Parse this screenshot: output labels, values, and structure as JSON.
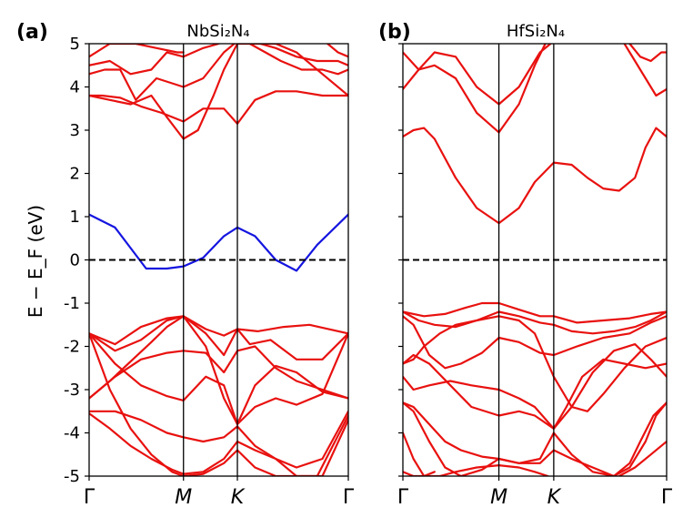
{
  "ylabel": "E − E_F (eV)",
  "colors": {
    "band": "#e8110f",
    "highlight": "#1515e0",
    "fermi": "#000000",
    "axis": "#000000"
  },
  "chart_data": [
    {
      "type": "line",
      "panel_letter": "(a)",
      "title": "NbSi₂N₄",
      "ylabel": "E − E_F (eV)",
      "ylim": [
        -5,
        5
      ],
      "yticks": [
        "-5",
        "-4",
        "-3",
        "-2",
        "-1",
        "0",
        "1",
        "2",
        "3",
        "4",
        "5"
      ],
      "xlim": [
        0,
        1
      ],
      "kpoints": [
        {
          "label": "Γ",
          "x": 0.0
        },
        {
          "label": "M",
          "x": 0.364
        },
        {
          "label": "K",
          "x": 0.572
        },
        {
          "label": "Γ",
          "x": 1.0
        }
      ],
      "fermi_level": 0,
      "series": [
        {
          "x": [
            0,
            0.1,
            0.22,
            0.3,
            0.364,
            0.44,
            0.52,
            0.572,
            0.64,
            0.72,
            0.8,
            0.88,
            1.0
          ],
          "y": [
            1.05,
            0.75,
            -0.2,
            -0.2,
            -0.15,
            0.05,
            0.55,
            0.75,
            0.55,
            0.0,
            -0.25,
            0.35,
            1.05
          ],
          "highlight": true
        },
        {
          "x": [
            0,
            0.1,
            0.2,
            0.3,
            0.364,
            0.45,
            0.52,
            0.572,
            0.65,
            0.75,
            0.85,
            1.0
          ],
          "y": [
            -1.7,
            -1.95,
            -1.55,
            -1.35,
            -1.3,
            -1.6,
            -1.75,
            -1.6,
            -1.65,
            -1.55,
            -1.5,
            -1.7
          ]
        },
        {
          "x": [
            0,
            0.1,
            0.2,
            0.3,
            0.364,
            0.45,
            0.52,
            0.572,
            0.62,
            0.7,
            0.8,
            0.9,
            1.0
          ],
          "y": [
            -1.7,
            -2.1,
            -1.85,
            -1.4,
            -1.3,
            -1.7,
            -2.2,
            -1.6,
            -1.95,
            -1.85,
            -2.3,
            -2.3,
            -1.7
          ]
        },
        {
          "x": [
            0,
            0.1,
            0.2,
            0.3,
            0.364,
            0.45,
            0.52,
            0.572,
            0.64,
            0.72,
            0.8,
            0.9,
            1.0
          ],
          "y": [
            -3.2,
            -2.7,
            -2.3,
            -2.15,
            -2.1,
            -2.15,
            -2.6,
            -2.1,
            -2.0,
            -2.5,
            -2.8,
            -3.0,
            -3.2
          ]
        },
        {
          "x": [
            0,
            0.08,
            0.16,
            0.24,
            0.3,
            0.364,
            0.45,
            0.52,
            0.572,
            0.64,
            0.72,
            0.8,
            0.9,
            1.0
          ],
          "y": [
            -3.2,
            -2.8,
            -2.35,
            -1.9,
            -1.55,
            -1.3,
            -2.0,
            -3.2,
            -3.8,
            -2.9,
            -2.45,
            -2.6,
            -3.05,
            -3.2
          ]
        },
        {
          "x": [
            0,
            0.1,
            0.2,
            0.3,
            0.364,
            0.45,
            0.52,
            0.572,
            0.64,
            0.72,
            0.8,
            0.9,
            1.0
          ],
          "y": [
            -1.7,
            -2.4,
            -2.9,
            -3.15,
            -3.25,
            -2.7,
            -2.9,
            -3.8,
            -3.4,
            -3.2,
            -3.35,
            -3.1,
            -1.7
          ]
        },
        {
          "x": [
            0,
            0.1,
            0.2,
            0.3,
            0.364,
            0.44,
            0.52,
            0.572,
            0.64,
            0.72,
            0.8,
            0.9,
            1.0
          ],
          "y": [
            -3.5,
            -3.5,
            -3.7,
            -4.0,
            -4.1,
            -4.2,
            -4.1,
            -3.85,
            -4.3,
            -4.6,
            -4.8,
            -4.6,
            -3.5
          ]
        },
        {
          "x": [
            0,
            0.08,
            0.16,
            0.24,
            0.32,
            0.364,
            0.44,
            0.52,
            0.572,
            0.64,
            0.72,
            0.8,
            0.88,
            1.0
          ],
          "y": [
            -3.55,
            -3.9,
            -4.3,
            -4.6,
            -4.85,
            -4.95,
            -4.9,
            -4.6,
            -4.2,
            -4.4,
            -4.6,
            -5.0,
            -5.0,
            -3.6
          ]
        },
        {
          "x": [
            0,
            0.08,
            0.16,
            0.24,
            0.32,
            0.364,
            0.44,
            0.52,
            0.572,
            0.64,
            0.72,
            0.8,
            0.9,
            1.0
          ],
          "y": [
            -1.7,
            -3.0,
            -3.9,
            -4.5,
            -4.9,
            -5.0,
            -4.95,
            -4.7,
            -4.4,
            -4.8,
            -5.0,
            -5.0,
            -5.0,
            -3.7
          ]
        },
        {
          "x": [
            0,
            0.05,
            0.12,
            0.2,
            0.28,
            0.364,
            0.44,
            0.52,
            0.572,
            0.64,
            0.72,
            0.8,
            0.9,
            1.0
          ],
          "y": [
            3.8,
            3.8,
            3.75,
            3.55,
            3.4,
            3.2,
            3.5,
            3.5,
            3.15,
            3.7,
            3.9,
            3.9,
            3.8,
            3.8
          ]
        },
        {
          "x": [
            0,
            0.08,
            0.16,
            0.24,
            0.3,
            0.364,
            0.42,
            0.48,
            0.52,
            0.572,
            0.64,
            0.72,
            0.8,
            0.9,
            1.0
          ],
          "y": [
            3.8,
            3.7,
            3.6,
            3.8,
            3.3,
            2.8,
            3.0,
            3.8,
            4.4,
            5.0,
            5.0,
            5.0,
            4.8,
            4.3,
            3.8
          ]
        },
        {
          "x": [
            0,
            0.06,
            0.12,
            0.18,
            0.26,
            0.364,
            0.44,
            0.52,
            0.56
          ],
          "y": [
            4.3,
            4.4,
            4.4,
            3.7,
            4.2,
            4.0,
            4.2,
            4.8,
            5.0
          ]
        },
        {
          "x": [
            0,
            0.08,
            0.16,
            0.24,
            0.3,
            0.364,
            0.44,
            0.5
          ],
          "y": [
            4.5,
            4.6,
            4.3,
            4.4,
            4.8,
            4.7,
            4.9,
            5.0
          ]
        },
        {
          "x": [
            0,
            0.08,
            0.18,
            0.26,
            0.34,
            0.364
          ],
          "y": [
            4.7,
            5.0,
            5.0,
            4.9,
            4.8,
            4.8
          ]
        },
        {
          "x": [
            0.62,
            0.68,
            0.74,
            0.82,
            0.9,
            0.96,
            1.0
          ],
          "y": [
            5.0,
            4.8,
            4.6,
            4.4,
            4.4,
            4.3,
            4.4
          ]
        },
        {
          "x": [
            0.66,
            0.72,
            0.8,
            0.88,
            0.96,
            1.0
          ],
          "y": [
            5.0,
            4.9,
            4.7,
            4.6,
            4.6,
            4.5
          ]
        },
        {
          "x": [
            0.92,
            0.96,
            1.0
          ],
          "y": [
            5.0,
            4.8,
            4.7
          ]
        }
      ]
    },
    {
      "type": "line",
      "panel_letter": "(b)",
      "title": "HfSi₂N₄",
      "ylim": [
        -5,
        5
      ],
      "xlim": [
        0,
        1
      ],
      "kpoints": [
        {
          "label": "Γ",
          "x": 0.0
        },
        {
          "label": "M",
          "x": 0.364
        },
        {
          "label": "K",
          "x": 0.572
        },
        {
          "label": "Γ",
          "x": 1.0
        }
      ],
      "fermi_level": 0,
      "series": [
        {
          "x": [
            0,
            0.04,
            0.08,
            0.12,
            0.2,
            0.28,
            0.364,
            0.44,
            0.5,
            0.572,
            0.64,
            0.7,
            0.76,
            0.82,
            0.88,
            0.92,
            0.96,
            1.0
          ],
          "y": [
            2.85,
            3.0,
            3.05,
            2.8,
            1.9,
            1.2,
            0.85,
            1.2,
            1.8,
            2.25,
            2.2,
            1.9,
            1.65,
            1.6,
            1.9,
            2.6,
            3.05,
            2.85
          ]
        },
        {
          "x": [
            0,
            0.06,
            0.12,
            0.2,
            0.28,
            0.364,
            0.44,
            0.5,
            0.54
          ],
          "y": [
            3.95,
            4.4,
            4.5,
            4.2,
            3.4,
            2.95,
            3.6,
            4.5,
            5.0
          ]
        },
        {
          "x": [
            0,
            0.06,
            0.12,
            0.2,
            0.28,
            0.364,
            0.44,
            0.52,
            0.56
          ],
          "y": [
            4.8,
            4.4,
            4.8,
            4.7,
            4.0,
            3.6,
            4.0,
            4.8,
            5.0
          ]
        },
        {
          "x": [
            0.84,
            0.88,
            0.92,
            0.96,
            1.0
          ],
          "y": [
            5.0,
            4.6,
            4.2,
            3.8,
            3.95
          ]
        },
        {
          "x": [
            0.86,
            0.9,
            0.94,
            0.98,
            1.0
          ],
          "y": [
            5.0,
            4.7,
            4.6,
            4.8,
            4.8
          ]
        },
        {
          "x": [
            0,
            0.08,
            0.16,
            0.24,
            0.3,
            0.364,
            0.44,
            0.52,
            0.572,
            0.66,
            0.76,
            0.86,
            0.94,
            1.0
          ],
          "y": [
            -1.2,
            -1.3,
            -1.25,
            -1.1,
            -1.0,
            -1.0,
            -1.15,
            -1.3,
            -1.3,
            -1.45,
            -1.4,
            -1.35,
            -1.25,
            -1.2
          ]
        },
        {
          "x": [
            0,
            0.06,
            0.12,
            0.2,
            0.28,
            0.364,
            0.44,
            0.52,
            0.572,
            0.64,
            0.72,
            0.8,
            0.88,
            0.94,
            1.0
          ],
          "y": [
            -1.2,
            -1.4,
            -1.5,
            -1.55,
            -1.4,
            -1.2,
            -1.3,
            -1.45,
            -1.5,
            -1.65,
            -1.7,
            -1.65,
            -1.55,
            -1.4,
            -1.2
          ]
        },
        {
          "x": [
            0,
            0.04,
            0.1,
            0.16,
            0.22,
            0.3,
            0.364,
            0.44,
            0.52,
            0.572,
            0.66,
            0.76,
            0.86,
            0.94,
            1.0
          ],
          "y": [
            -1.3,
            -1.5,
            -2.2,
            -2.5,
            -2.4,
            -2.15,
            -1.8,
            -1.9,
            -2.15,
            -2.2,
            -2.0,
            -1.8,
            -1.7,
            -1.45,
            -1.3
          ]
        },
        {
          "x": [
            0,
            0.04,
            0.08,
            0.14,
            0.2,
            0.28,
            0.364,
            0.44,
            0.5,
            0.572,
            0.64,
            0.7,
            0.76,
            0.84,
            0.92,
            1.0
          ],
          "y": [
            -2.4,
            -2.3,
            -2.0,
            -1.7,
            -1.5,
            -1.4,
            -1.3,
            -1.4,
            -1.7,
            -2.7,
            -3.4,
            -3.5,
            -3.1,
            -2.5,
            -2.0,
            -1.8
          ]
        },
        {
          "x": [
            0,
            0.04,
            0.1,
            0.18,
            0.26,
            0.364,
            0.44,
            0.5,
            0.572,
            0.62,
            0.68,
            0.76,
            0.84,
            0.92,
            1.0
          ],
          "y": [
            -2.4,
            -2.2,
            -2.4,
            -2.9,
            -3.4,
            -3.6,
            -3.5,
            -3.6,
            -3.9,
            -3.4,
            -2.7,
            -2.3,
            -2.4,
            -2.5,
            -2.4
          ]
        },
        {
          "x": [
            0,
            0.04,
            0.1,
            0.18,
            0.26,
            0.364,
            0.44,
            0.5,
            0.572,
            0.64,
            0.72,
            0.8,
            0.88,
            0.94,
            1.0
          ],
          "y": [
            -2.7,
            -3.0,
            -2.9,
            -2.8,
            -2.9,
            -3.0,
            -3.2,
            -3.4,
            -3.9,
            -3.4,
            -2.6,
            -2.1,
            -1.95,
            -2.3,
            -2.7
          ]
        },
        {
          "x": [
            0,
            0.04,
            0.1,
            0.16,
            0.22,
            0.3,
            0.364,
            0.44,
            0.52,
            0.572,
            0.64,
            0.72,
            0.8,
            0.86,
            0.9,
            0.95,
            1.0
          ],
          "y": [
            -3.3,
            -3.4,
            -3.8,
            -4.2,
            -4.4,
            -4.55,
            -4.6,
            -4.7,
            -4.7,
            -4.4,
            -4.6,
            -4.8,
            -5.0,
            -4.7,
            -4.2,
            -3.6,
            -3.3
          ]
        },
        {
          "x": [
            0,
            0.04,
            0.1,
            0.16,
            0.22,
            0.3,
            0.364,
            0.44,
            0.52,
            0.572,
            0.64,
            0.72,
            0.8,
            0.86,
            0.92,
            0.96,
            1.0
          ],
          "y": [
            -3.3,
            -3.5,
            -4.2,
            -4.8,
            -5.0,
            -4.85,
            -4.6,
            -4.7,
            -4.6,
            -4.0,
            -4.5,
            -4.9,
            -5.0,
            -4.8,
            -4.2,
            -3.6,
            -3.3
          ]
        },
        {
          "x": [
            0,
            0.04,
            0.08,
            0.14,
            0.2,
            0.28,
            0.364,
            0.44,
            0.5,
            0.55
          ],
          "y": [
            -4.0,
            -4.6,
            -5.0,
            -5.0,
            -4.9,
            -4.8,
            -4.75,
            -4.8,
            -4.9,
            -5.0
          ]
        },
        {
          "x": [
            0.82,
            0.88,
            0.94,
            1.0
          ],
          "y": [
            -5.0,
            -4.8,
            -4.5,
            -4.2
          ]
        },
        {
          "x": [
            0,
            0.04,
            0.08,
            0.12
          ],
          "y": [
            -4.9,
            -5.0,
            -5.0,
            -4.9
          ]
        }
      ]
    }
  ]
}
